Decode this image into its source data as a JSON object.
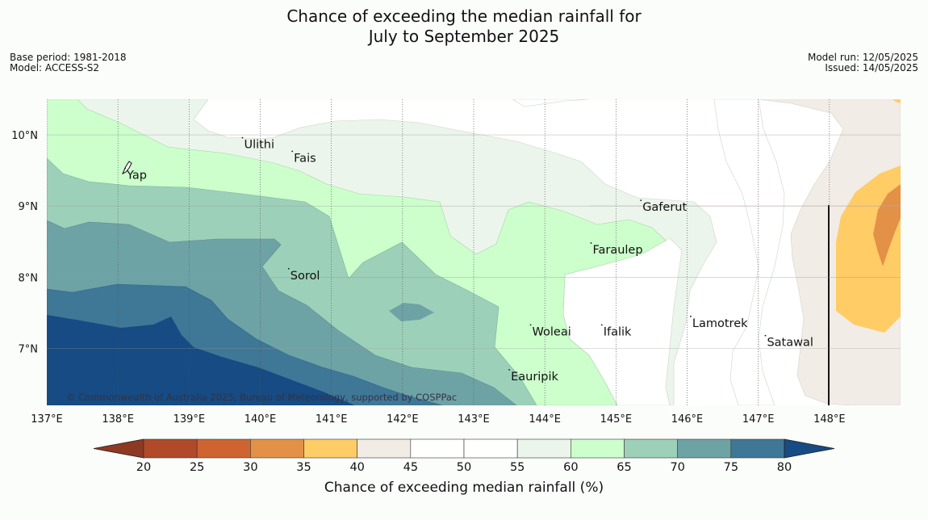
{
  "title": {
    "line1": "Chance of exceeding the median rainfall for",
    "line2": "July to September 2025"
  },
  "meta_left": {
    "base_period": "Base period: 1981-2018",
    "model": "Model: ACCESS-S2"
  },
  "meta_right": {
    "model_run": "Model run: 12/05/2025",
    "issued": "Issued: 14/05/2025"
  },
  "copyright": "© Commonwealth of Australia 2025, Bureau of Meteorology, supported by COSPPac",
  "map": {
    "lon_range": [
      137,
      149
    ],
    "lat_range": [
      6.2,
      10.5
    ],
    "lon_ticks": [
      {
        "value": 137,
        "label": "137°E"
      },
      {
        "value": 138,
        "label": "138°E"
      },
      {
        "value": 139,
        "label": "139°E"
      },
      {
        "value": 140,
        "label": "140°E"
      },
      {
        "value": 141,
        "label": "141°E"
      },
      {
        "value": 142,
        "label": "142°E"
      },
      {
        "value": 143,
        "label": "143°E"
      },
      {
        "value": 144,
        "label": "144°E"
      },
      {
        "value": 145,
        "label": "145°E"
      },
      {
        "value": 146,
        "label": "146°E"
      },
      {
        "value": 147,
        "label": "147°E"
      },
      {
        "value": 148,
        "label": "148°E"
      }
    ],
    "lat_ticks": [
      {
        "value": 10,
        "label": "10°N"
      },
      {
        "value": 9,
        "label": "9°N"
      },
      {
        "value": 8,
        "label": "8°N"
      },
      {
        "value": 7,
        "label": "7°N"
      }
    ],
    "places": [
      {
        "name": "Ulithi",
        "lon": 139.75,
        "lat": 9.96
      },
      {
        "name": "Fais",
        "lon": 140.45,
        "lat": 9.77
      },
      {
        "name": "Yap",
        "lon": 138.1,
        "lat": 9.53
      },
      {
        "name": "Gaferut",
        "lon": 145.35,
        "lat": 9.08
      },
      {
        "name": "Faraulep",
        "lon": 144.65,
        "lat": 8.48
      },
      {
        "name": "Sorol",
        "lon": 140.4,
        "lat": 8.12
      },
      {
        "name": "Lamotrek",
        "lon": 146.05,
        "lat": 7.45
      },
      {
        "name": "Woleai",
        "lon": 143.8,
        "lat": 7.33
      },
      {
        "name": "Ifalik",
        "lon": 144.8,
        "lat": 7.33
      },
      {
        "name": "Satawal",
        "lon": 147.1,
        "lat": 7.18
      },
      {
        "name": "Eauripik",
        "lon": 143.5,
        "lat": 6.7
      }
    ]
  },
  "colorbar": {
    "label": "Chance of exceeding median rainfall (%)",
    "ticks": [
      "20",
      "25",
      "30",
      "35",
      "40",
      "45",
      "50",
      "55",
      "60",
      "65",
      "70",
      "75",
      "80"
    ],
    "low_extend_color": "#8e3a22",
    "high_extend_color": "#164b83",
    "colors": [
      "#b04a28",
      "#cf6431",
      "#e39146",
      "#ffcc66",
      "#f2ece6",
      "#ffffff",
      "#ffffff",
      "#ecf5eb",
      "#ccffcc",
      "#9dd0b9",
      "#6ea3a6",
      "#3f7796"
    ]
  }
}
